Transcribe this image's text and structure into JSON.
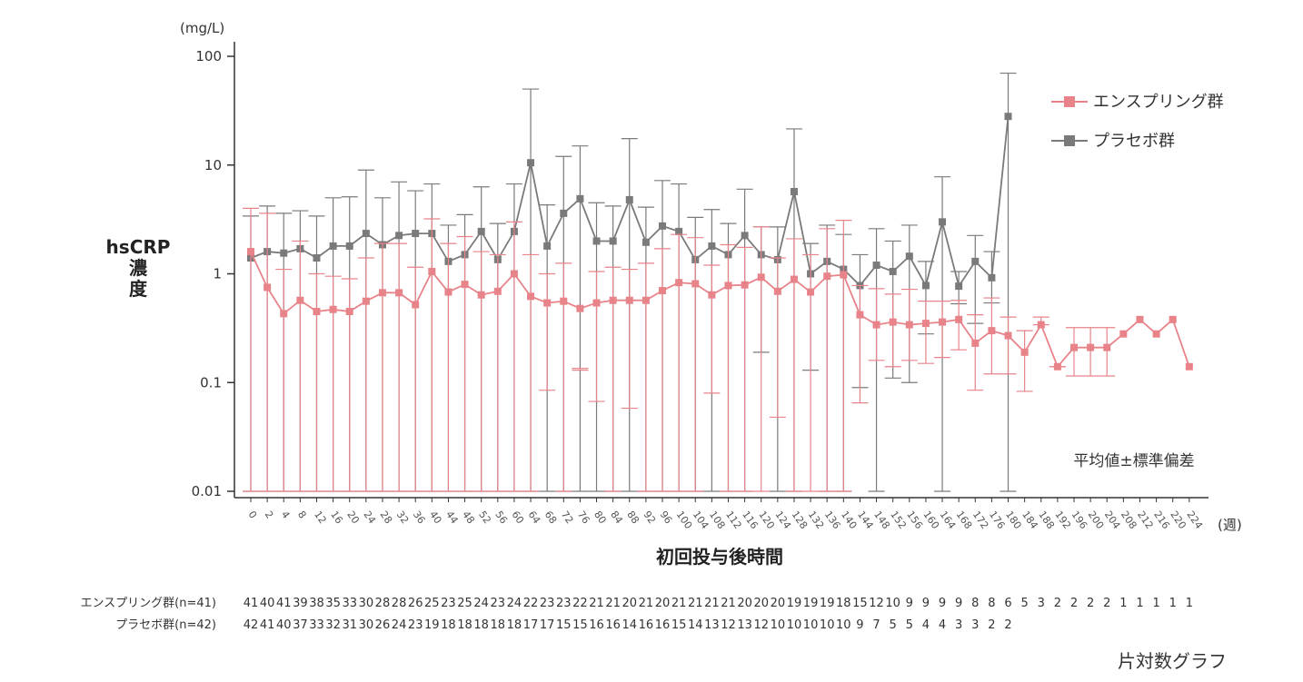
{
  "chart_data": {
    "type": "line",
    "y_unit": "(mg/L)",
    "ylabel": "hsCRP 濃度",
    "xlabel": "初回投与後時間",
    "x_unit": "(週)",
    "y_scale": "log",
    "ylim": [
      0.01,
      120
    ],
    "y_ticks": [
      100,
      10,
      1,
      0.1,
      0.01
    ],
    "y_tick_labels": [
      "100",
      "10",
      "1",
      "0.1",
      "0.01"
    ],
    "x": [
      0,
      2,
      4,
      8,
      12,
      16,
      20,
      24,
      28,
      32,
      36,
      40,
      44,
      48,
      52,
      56,
      60,
      64,
      68,
      72,
      76,
      80,
      84,
      88,
      92,
      96,
      100,
      104,
      108,
      112,
      116,
      120,
      124,
      128,
      132,
      136,
      140,
      144,
      148,
      152,
      156,
      160,
      164,
      168,
      172,
      176,
      180,
      184,
      188,
      192,
      196,
      200,
      204,
      208,
      212,
      216,
      220,
      224
    ],
    "note": "平均値±標準偏差",
    "footer": "片対数グラフ",
    "legend_position": "top-right",
    "series": [
      {
        "name": "エンスプリング群",
        "color": "#e8838a",
        "n_label": "エンスプリング群(n=41)",
        "mean": [
          1.6,
          0.75,
          0.43,
          0.57,
          0.45,
          0.47,
          0.45,
          0.56,
          0.67,
          0.67,
          0.52,
          1.05,
          0.68,
          0.8,
          0.64,
          0.69,
          1.0,
          0.62,
          0.54,
          0.56,
          0.48,
          0.54,
          0.57,
          0.57,
          0.57,
          0.7,
          0.83,
          0.81,
          0.64,
          0.78,
          0.79,
          0.93,
          0.69,
          0.89,
          0.68,
          0.95,
          0.98,
          0.42,
          0.34,
          0.36,
          0.34,
          0.35,
          0.36,
          0.38,
          0.23,
          0.3,
          0.27,
          0.19,
          0.34,
          0.14,
          0.21,
          0.21,
          0.21,
          0.28,
          0.38,
          0.28,
          0.38,
          0.14
        ],
        "sd_upper": [
          4.0,
          3.6,
          1.1,
          2.0,
          1.0,
          0.95,
          0.9,
          1.4,
          1.9,
          1.9,
          1.15,
          3.2,
          1.9,
          2.2,
          1.6,
          1.5,
          3.0,
          1.5,
          1.0,
          1.25,
          0.13,
          1.05,
          1.15,
          1.1,
          1.25,
          1.7,
          2.3,
          2.15,
          1.2,
          1.85,
          1.75,
          2.7,
          1.4,
          2.1,
          1.5,
          2.6,
          3.1,
          0.78,
          0.73,
          0.65,
          0.72,
          0.56,
          0.56,
          0.57,
          0.42,
          0.6,
          0.4,
          0.3,
          0.4,
          0.14,
          0.32,
          0.32,
          0.32,
          null,
          null,
          null,
          null,
          null
        ],
        "sd_lower": [
          0.01,
          0.01,
          0.01,
          0.01,
          0.01,
          0.01,
          0.01,
          0.01,
          0.01,
          0.01,
          0.01,
          0.01,
          0.01,
          0.01,
          0.01,
          0.01,
          0.01,
          0.01,
          0.085,
          0.01,
          0.135,
          0.067,
          0.01,
          0.058,
          0.01,
          0.01,
          0.01,
          0.01,
          0.08,
          0.01,
          0.01,
          0.01,
          0.048,
          0.01,
          0.01,
          0.01,
          0.01,
          0.065,
          0.16,
          0.14,
          0.16,
          0.15,
          0.17,
          0.2,
          0.085,
          0.12,
          0.12,
          0.083,
          0.34,
          0.14,
          0.115,
          0.115,
          0.115,
          null,
          null,
          null,
          null,
          null
        ],
        "n": [
          "41",
          "40",
          "41",
          "39",
          "38",
          "35",
          "33",
          "30",
          "28",
          "28",
          "26",
          "25",
          "23",
          "25",
          "24",
          "23",
          "24",
          "22",
          "23",
          "23",
          "22",
          "21",
          "21",
          "20",
          "21",
          "20",
          "21",
          "21",
          "21",
          "21",
          "20",
          "20",
          "20",
          "19",
          "19",
          "19",
          "18",
          "15",
          "12",
          "10",
          "9",
          "9",
          "9",
          "9",
          "8",
          "8",
          "6",
          "5",
          "3",
          "2",
          "2",
          "2",
          "2",
          "1",
          "1",
          "1",
          "1",
          "1"
        ]
      },
      {
        "name": "プラセボ群",
        "color": "#7a7a7a",
        "n_label": "プラセボ群(n=42)",
        "mean": [
          1.4,
          1.6,
          1.55,
          1.7,
          1.4,
          1.8,
          1.8,
          2.35,
          1.85,
          2.25,
          2.35,
          2.35,
          1.3,
          1.5,
          2.45,
          1.35,
          2.45,
          10.5,
          1.8,
          3.6,
          4.9,
          2.0,
          2.0,
          4.8,
          1.95,
          2.75,
          2.45,
          1.35,
          1.8,
          1.5,
          2.25,
          1.5,
          1.35,
          5.7,
          1.0,
          1.3,
          1.1,
          0.78,
          1.2,
          1.05,
          1.45,
          0.78,
          3.0,
          0.77,
          1.3,
          0.92,
          28.0
        ],
        "sd_upper": [
          3.4,
          4.2,
          3.6,
          3.8,
          3.4,
          5.0,
          5.1,
          9.0,
          5.0,
          7.0,
          5.8,
          6.7,
          2.8,
          3.5,
          6.3,
          2.9,
          6.7,
          50,
          4.3,
          12,
          15,
          4.5,
          4.2,
          17.5,
          4.1,
          7.2,
          6.7,
          3.3,
          3.9,
          2.9,
          6.0,
          2.7,
          2.7,
          21.5,
          1.9,
          2.8,
          2.3,
          1.5,
          2.6,
          2.0,
          2.8,
          1.3,
          7.8,
          1.05,
          2.25,
          1.6,
          70
        ],
        "sd_lower": [
          0.01,
          0.01,
          0.01,
          0.01,
          0.01,
          0.01,
          0.01,
          0.01,
          0.01,
          0.01,
          0.01,
          0.01,
          0.01,
          0.01,
          0.01,
          0.01,
          0.01,
          0.01,
          0.01,
          0.01,
          0.01,
          0.01,
          0.01,
          0.01,
          0.01,
          0.01,
          0.01,
          0.01,
          0.01,
          0.01,
          0.01,
          0.19,
          0.01,
          0.01,
          0.13,
          0.01,
          0.01,
          0.09,
          0.01,
          0.11,
          0.1,
          0.28,
          0.01,
          0.53,
          0.35,
          0.54,
          0.01
        ],
        "n": [
          "42",
          "41",
          "40",
          "37",
          "33",
          "32",
          "31",
          "30",
          "26",
          "24",
          "23",
          "19",
          "18",
          "18",
          "18",
          "18",
          "18",
          "17",
          "17",
          "15",
          "15",
          "16",
          "16",
          "14",
          "16",
          "16",
          "15",
          "14",
          "13",
          "12",
          "13",
          "12",
          "10",
          "10",
          "10",
          "10",
          "10",
          "9",
          "7",
          "5",
          "5",
          "4",
          "4",
          "3",
          "3",
          "2",
          "2"
        ]
      }
    ]
  }
}
